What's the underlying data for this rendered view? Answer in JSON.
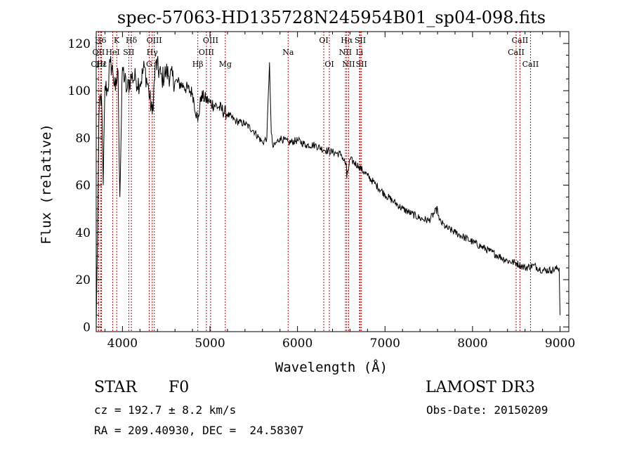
{
  "chart_data": {
    "type": "line",
    "title": "spec-57063-HD135728N245954B01_sp04-098.fits",
    "xlabel": "Wavelength (Å)",
    "ylabel": "Flux (relative)",
    "xlim": [
      3700,
      9100
    ],
    "ylim": [
      -2,
      125
    ],
    "xticks": [
      4000,
      5000,
      6000,
      7000,
      8000,
      9000
    ],
    "yticks": [
      0,
      20,
      40,
      60,
      80,
      100,
      120
    ],
    "series": [
      {
        "name": "flux",
        "x": [
          3700,
          3710,
          3720,
          3735,
          3760,
          3780,
          3800,
          3830,
          3860,
          3890,
          3920,
          3950,
          3970,
          4000,
          4050,
          4100,
          4150,
          4200,
          4250,
          4300,
          4340,
          4380,
          4450,
          4500,
          4600,
          4700,
          4800,
          4861,
          4900,
          5000,
          5100,
          5200,
          5300,
          5400,
          5500,
          5600,
          5650,
          5680,
          5700,
          5720,
          5800,
          5900,
          6000,
          6100,
          6200,
          6300,
          6400,
          6500,
          6560,
          6563,
          6600,
          6700,
          6800,
          6900,
          7000,
          7100,
          7200,
          7300,
          7400,
          7500,
          7600,
          7620,
          7700,
          7800,
          7900,
          8000,
          8100,
          8200,
          8300,
          8400,
          8500,
          8600,
          8700,
          8800,
          8900,
          8990,
          9000
        ],
        "y": [
          0,
          25,
          55,
          95,
          98,
          60,
          102,
          100,
          112,
          108,
          100,
          108,
          55,
          110,
          100,
          106,
          105,
          103,
          110,
          100,
          90,
          112,
          105,
          108,
          104,
          102,
          99,
          87,
          98,
          95,
          93,
          90,
          87,
          86,
          83,
          78,
          80,
          112,
          82,
          76,
          80,
          78,
          79,
          77,
          77,
          75,
          74,
          73,
          68,
          63,
          71,
          68,
          64,
          60,
          56,
          53,
          50,
          48,
          46,
          45,
          50,
          45,
          42,
          40,
          38,
          36,
          34,
          32,
          30,
          28,
          27,
          25,
          26,
          24,
          24,
          25,
          5
        ]
      }
    ],
    "lines": [
      {
        "name": "H6",
        "wl": 3750,
        "row": 1
      },
      {
        "name": "OII",
        "wl": 3727,
        "row": 2
      },
      {
        "name": "OIII",
        "wl": 3727,
        "row": 3
      },
      {
        "name": "Hε",
        "wl": 3760,
        "row": 3
      },
      {
        "name": "K",
        "wl": 3934,
        "row": 1
      },
      {
        "name": "HeI",
        "wl": 3889,
        "row": 2
      },
      {
        "name": "SII",
        "wl": 4072,
        "row": 2
      },
      {
        "name": "Hδ",
        "wl": 4102,
        "row": 1
      },
      {
        "name": "OIII",
        "wl": 4363,
        "row": 1
      },
      {
        "name": "Hγ",
        "wl": 4340,
        "row": 2
      },
      {
        "name": "G",
        "wl": 4305,
        "row": 3
      },
      {
        "name": "OIII",
        "wl": 5007,
        "row": 1
      },
      {
        "name": "OIII",
        "wl": 4959,
        "row": 2
      },
      {
        "name": "Hβ",
        "wl": 4861,
        "row": 3
      },
      {
        "name": "Mg",
        "wl": 5175,
        "row": 3
      },
      {
        "name": "Na",
        "wl": 5893,
        "row": 2
      },
      {
        "name": "OI",
        "wl": 6300,
        "row": 1
      },
      {
        "name": "OI",
        "wl": 6364,
        "row": 3
      },
      {
        "name": "Hα",
        "wl": 6563,
        "row": 1
      },
      {
        "name": "NII",
        "wl": 6548,
        "row": 2
      },
      {
        "name": "NII",
        "wl": 6584,
        "row": 3
      },
      {
        "name": "SII",
        "wl": 6717,
        "row": 1
      },
      {
        "name": "Li",
        "wl": 6708,
        "row": 2
      },
      {
        "name": "SII",
        "wl": 6731,
        "row": 3
      },
      {
        "name": "CaII",
        "wl": 8542,
        "row": 1
      },
      {
        "name": "CaII",
        "wl": 8498,
        "row": 2
      },
      {
        "name": "CaII",
        "wl": 8662,
        "row": 3
      }
    ]
  },
  "info": {
    "object_class": "STAR",
    "subclass": "F0",
    "survey": "LAMOST DR3",
    "cz": "cz = 192.7 ± 8.2 km/s",
    "obs_date": "Obs-Date: 20150209",
    "coords": "RA = 209.40930, DEC =  24.58307"
  },
  "colors": {
    "line_marker": "#cc0000",
    "spectrum": "#000000"
  }
}
